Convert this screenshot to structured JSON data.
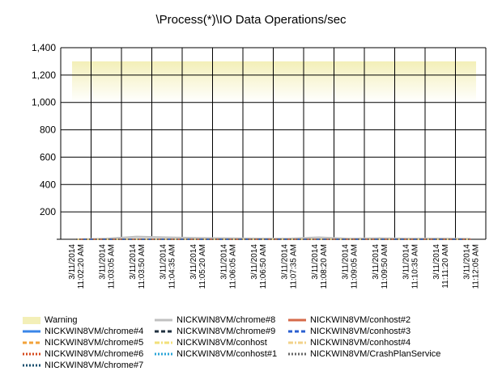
{
  "chart_data": {
    "type": "line",
    "title": "\\Process(*)\\IO Data Operations/sec",
    "xlabel": "",
    "ylabel": "",
    "ylim": [
      0,
      1400
    ],
    "y_ticks": [
      "200",
      "400",
      "600",
      "800",
      "1,000",
      "1,200",
      "1,400"
    ],
    "y_tick_values": [
      200,
      400,
      600,
      800,
      1000,
      1200,
      1400
    ],
    "x_categories": [
      "3/11/2014 11:02:20 AM",
      "3/11/2014 11:03:05 AM",
      "3/11/2014 11:03:50 AM",
      "3/11/2014 11:04:35 AM",
      "3/11/2014 11:05:20 AM",
      "3/11/2014 11:06:05 AM",
      "3/11/2014 11:06:50 AM",
      "3/11/2014 11:07:35 AM",
      "3/11/2014 11:08:20 AM",
      "3/11/2014 11:09:05 AM",
      "3/11/2014 11:09:50 AM",
      "3/11/2014 11:10:35 AM",
      "3/11/2014 11:11:20 AM",
      "3/11/2014 11:12:05 AM"
    ],
    "warning_band": {
      "label": "Warning",
      "y_from": 1000,
      "y_to": 1300,
      "color": "#f3efb8"
    },
    "grid": true,
    "legend_position": "bottom",
    "series": [
      {
        "name": "NICKWIN8VM/chrome#4",
        "color": "#3a86e8",
        "style": "solid",
        "values": [
          0,
          0,
          0,
          0,
          0,
          0,
          0,
          0,
          0,
          0,
          0,
          0,
          0,
          0
        ]
      },
      {
        "name": "NICKWIN8VM/chrome#5",
        "color": "#f2a23a",
        "style": "dashed",
        "values": [
          0,
          0,
          0,
          0,
          0,
          0,
          0,
          0,
          0,
          0,
          0,
          0,
          0,
          0
        ]
      },
      {
        "name": "NICKWIN8VM/chrome#6",
        "color": "#d64a1e",
        "style": "dotted",
        "values": [
          0,
          0,
          0,
          0,
          0,
          0,
          0,
          0,
          0,
          0,
          0,
          0,
          0,
          0
        ]
      },
      {
        "name": "NICKWIN8VM/chrome#7",
        "color": "#1a4f6e",
        "style": "dotted",
        "values": [
          0,
          0,
          0,
          0,
          0,
          0,
          0,
          0,
          0,
          0,
          0,
          0,
          0,
          0
        ]
      },
      {
        "name": "NICKWIN8VM/chrome#8",
        "color": "#c0c0c0",
        "style": "solid",
        "values": [
          0,
          5,
          20,
          15,
          10,
          8,
          6,
          5,
          15,
          5,
          8,
          5,
          6,
          4
        ]
      },
      {
        "name": "NICKWIN8VM/chrome#9",
        "color": "#203040",
        "style": "dashed",
        "values": [
          0,
          0,
          0,
          0,
          0,
          0,
          0,
          0,
          0,
          0,
          0,
          0,
          0,
          0
        ]
      },
      {
        "name": "NICKWIN8VM/conhost",
        "color": "#f2e07a",
        "style": "dashdot",
        "values": [
          0,
          0,
          0,
          0,
          0,
          0,
          0,
          0,
          0,
          0,
          0,
          0,
          0,
          0
        ]
      },
      {
        "name": "NICKWIN8VM/conhost#1",
        "color": "#2ba6d8",
        "style": "dotted",
        "values": [
          0,
          0,
          0,
          0,
          0,
          0,
          0,
          0,
          0,
          0,
          0,
          0,
          0,
          0
        ]
      },
      {
        "name": "NICKWIN8VM/conhost#2",
        "color": "#d66a4a",
        "style": "solid",
        "values": [
          0,
          0,
          0,
          0,
          0,
          0,
          0,
          0,
          0,
          0,
          0,
          0,
          0,
          0
        ]
      },
      {
        "name": "NICKWIN8VM/conhost#3",
        "color": "#2a5fd0",
        "style": "dashed",
        "values": [
          0,
          0,
          0,
          0,
          0,
          0,
          0,
          0,
          0,
          0,
          0,
          0,
          0,
          0
        ]
      },
      {
        "name": "NICKWIN8VM/conhost#4",
        "color": "#f2d28a",
        "style": "dashdot",
        "values": [
          0,
          0,
          0,
          0,
          0,
          0,
          0,
          0,
          0,
          0,
          0,
          0,
          0,
          0
        ]
      },
      {
        "name": "NICKWIN8VM/CrashPlanService",
        "color": "#666666",
        "style": "dotted",
        "values": [
          0,
          0,
          0,
          0,
          0,
          0,
          0,
          0,
          0,
          0,
          0,
          0,
          0,
          0
        ]
      }
    ]
  },
  "legend": {
    "warning_label": "Warning",
    "columns": [
      [
        "Warning",
        "NICKWIN8VM/chrome#4",
        "NICKWIN8VM/chrome#5",
        "NICKWIN8VM/chrome#6",
        "NICKWIN8VM/chrome#7"
      ],
      [
        "NICKWIN8VM/chrome#8",
        "NICKWIN8VM/chrome#9",
        "NICKWIN8VM/conhost",
        "NICKWIN8VM/conhost#1"
      ],
      [
        "NICKWIN8VM/conhost#2",
        "NICKWIN8VM/conhost#3",
        "NICKWIN8VM/conhost#4",
        "NICKWIN8VM/CrashPlanService"
      ]
    ]
  }
}
